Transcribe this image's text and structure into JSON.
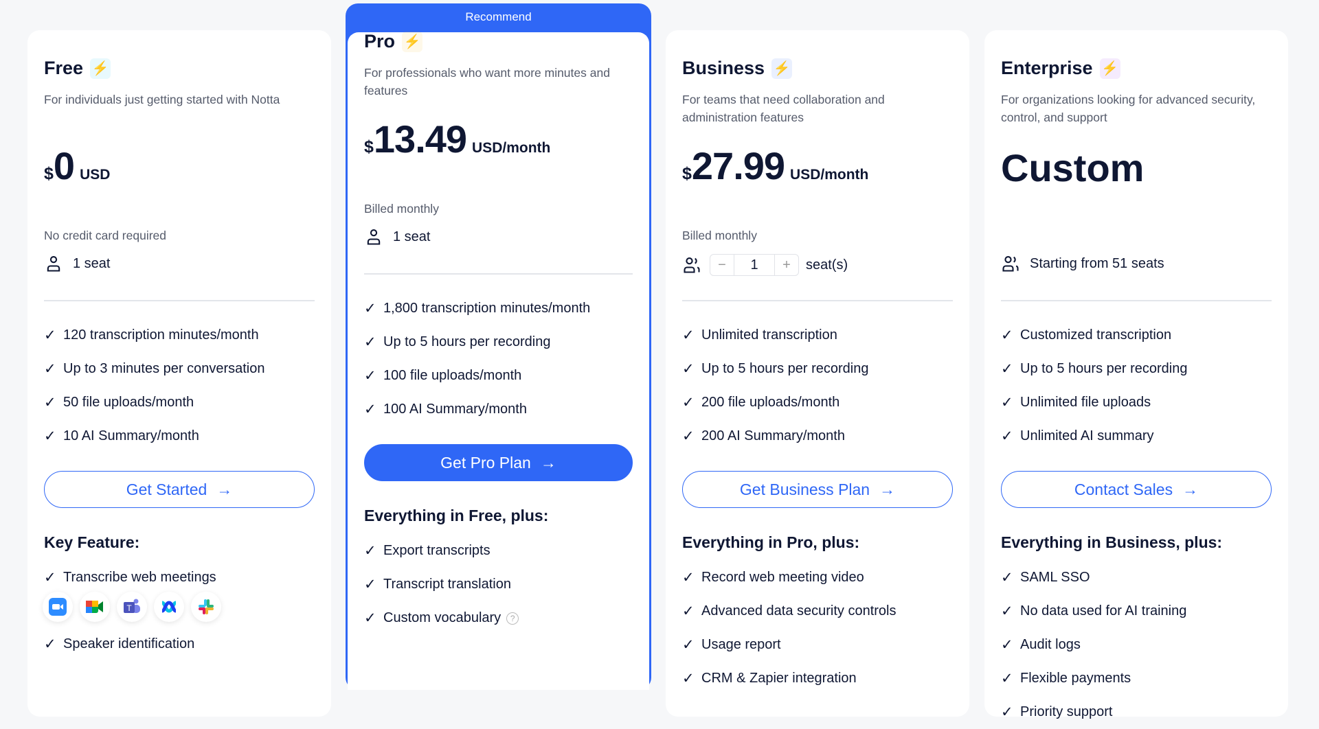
{
  "colors": {
    "accent": "#2f67f6",
    "text": "#0f1733",
    "muted": "#555b6b"
  },
  "plans": [
    {
      "name": "Free",
      "bolt_color": "#22c6ef",
      "desc": "For individuals just getting started with Notta",
      "currency": "$",
      "amount": "0",
      "unit": "USD",
      "sub": "No credit card required",
      "seat": "1 seat",
      "features": [
        "120 transcription minutes/month",
        "Up to 3 minutes per conversation",
        "50 file uploads/month",
        "10 AI Summary/month"
      ],
      "button": "Get Started",
      "section": "Key Feature:",
      "extras": [
        "Transcribe web meetings",
        "Speaker identification"
      ],
      "apps": [
        "zoom-icon",
        "google-meet-icon",
        "microsoft-teams-icon",
        "webex-icon",
        "slack-icon"
      ]
    },
    {
      "name": "Pro",
      "badge": "Recommend",
      "bolt_color": "#f7b825",
      "desc": "For professionals who want more minutes and features",
      "currency": "$",
      "amount": "13.49",
      "unit": "USD/month",
      "sub": "Billed monthly",
      "seat": "1 seat",
      "features": [
        "1,800 transcription minutes/month",
        "Up to 5 hours per recording",
        "100 file uploads/month",
        "100 AI Summary/month"
      ],
      "button": "Get Pro Plan",
      "section": "Everything in Free, plus:",
      "extras": [
        "Export transcripts",
        "Transcript translation",
        "Custom vocabulary"
      ]
    },
    {
      "name": "Business",
      "bolt_color": "#2f67f6",
      "desc": "For teams that need collaboration and administration features",
      "currency": "$",
      "amount": "27.99",
      "unit": "USD/month",
      "sub": "Billed monthly",
      "seat_minus": "−",
      "seat_value": "1",
      "seat_plus": "+",
      "seat_label": "seat(s)",
      "features": [
        "Unlimited transcription",
        "Up to 5 hours per recording",
        "200 file uploads/month",
        "200 AI Summary/month"
      ],
      "button": "Get Business Plan",
      "section": "Everything in Pro, plus:",
      "extras": [
        "Record web meeting video",
        "Advanced data security controls",
        "Usage report",
        "CRM & Zapier integration"
      ]
    },
    {
      "name": "Enterprise",
      "bolt_color": "#9b3cf0",
      "desc": "For organizations looking for advanced security, control, and support",
      "price": "Custom",
      "seat": "Starting from 51 seats",
      "features": [
        "Customized transcription",
        "Up to 5 hours per recording",
        "Unlimited file uploads",
        "Unlimited AI summary"
      ],
      "button": "Contact Sales",
      "section": "Everything in Business, plus:",
      "extras": [
        "SAML SSO",
        "No data used for AI training",
        "Audit logs",
        "Flexible payments",
        "Priority support"
      ]
    }
  ],
  "check": "✓",
  "arrow": "→",
  "help": "?"
}
